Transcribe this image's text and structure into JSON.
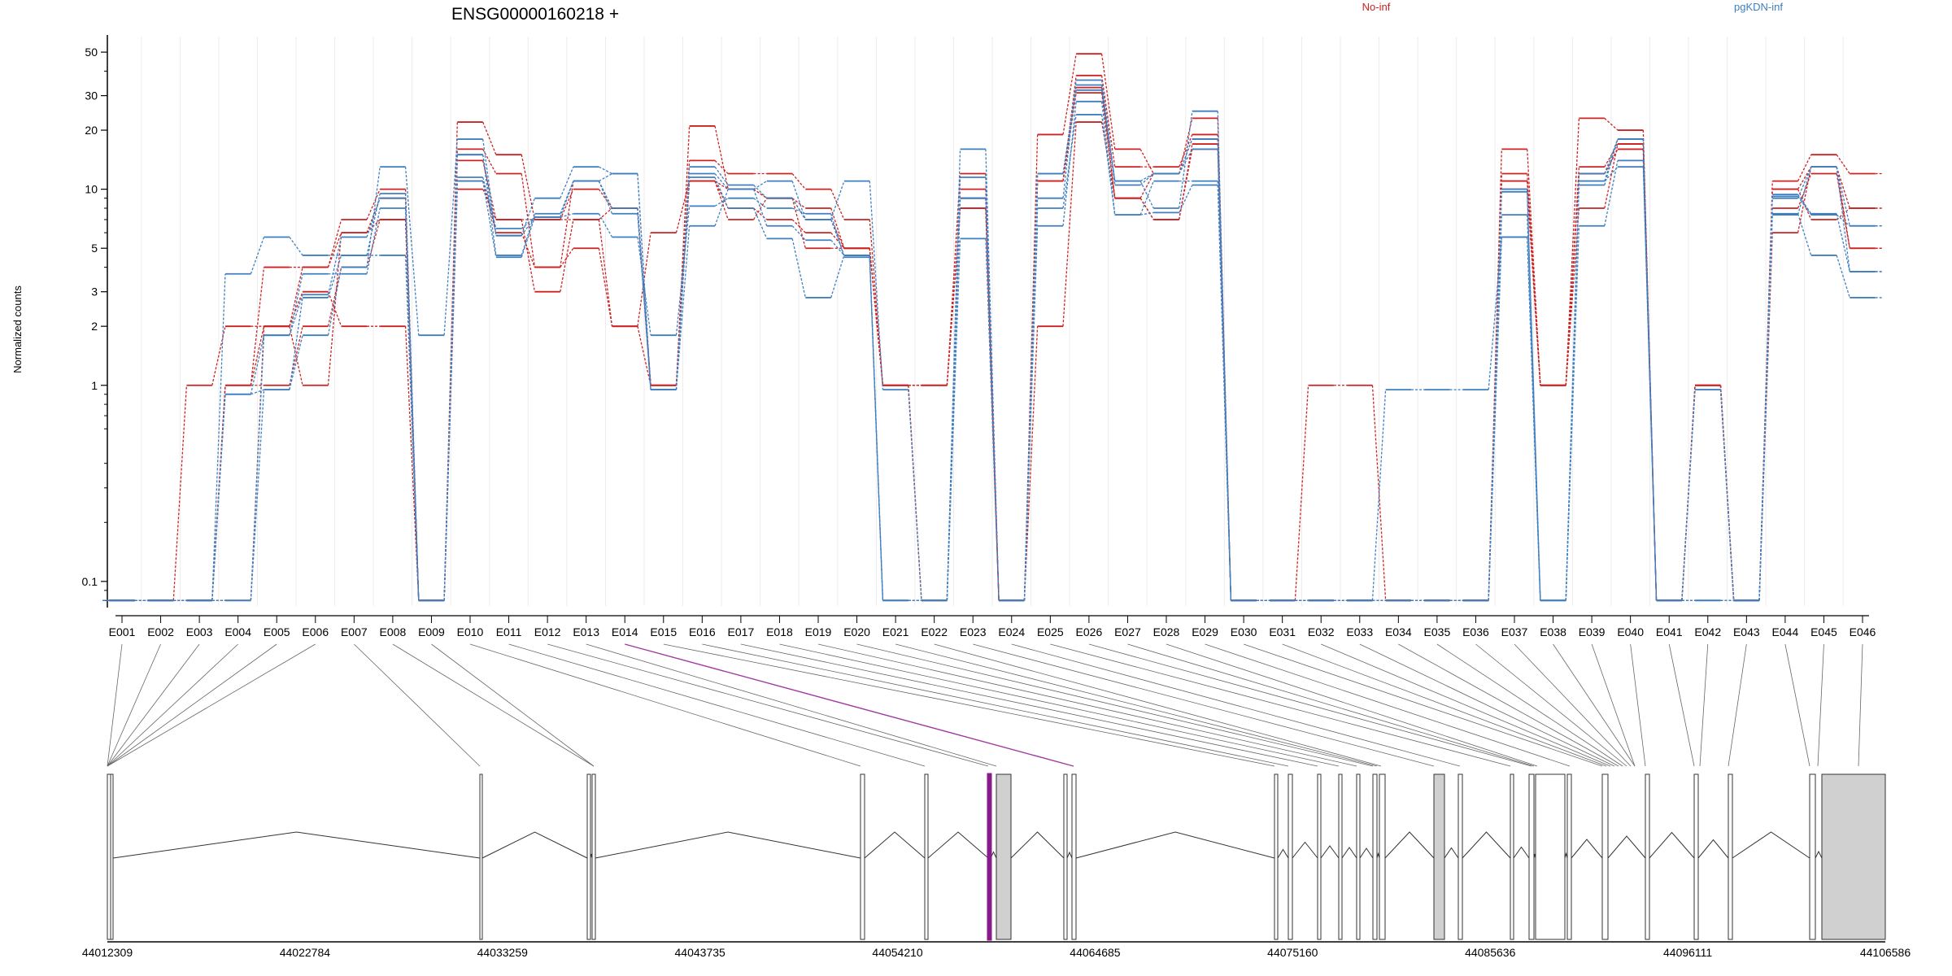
{
  "chart_data": {
    "type": "line",
    "title": "ENSG00000160218 +",
    "ylabel": "Normalized counts",
    "yscale": "log",
    "yticks": [
      "0.1",
      "1",
      "2",
      "3",
      "5",
      "10",
      "20",
      "30",
      "50"
    ],
    "ylim": [
      0.075,
      60
    ],
    "legend": [
      {
        "name": "No-inf",
        "color": "#cc2222"
      },
      {
        "name": "pgKDN-inf",
        "color": "#3f7fc0"
      }
    ],
    "exon_labels": [
      "E001",
      "E002",
      "E003",
      "E004",
      "E005",
      "E006",
      "E007",
      "E008",
      "E009",
      "E010",
      "E011",
      "E012",
      "E013",
      "E014",
      "E015",
      "E016",
      "E017",
      "E018",
      "E019",
      "E020",
      "E021",
      "E022",
      "E023",
      "E024",
      "E025",
      "E026",
      "E027",
      "E028",
      "E029",
      "E030",
      "E031",
      "E032",
      "E033",
      "E034",
      "E035",
      "E036",
      "E037",
      "E038",
      "E039",
      "E040",
      "E041",
      "E042",
      "E043",
      "E044",
      "E045",
      "E046"
    ],
    "genomic_axis": {
      "ticks": [
        "44012309",
        "44022784",
        "44033259",
        "44043735",
        "44054210",
        "44064685",
        "44075160",
        "44085636",
        "44096111",
        "44106586"
      ],
      "range": [
        44012309,
        44106586
      ]
    },
    "highlighted_exon": "E014",
    "series": [
      {
        "group": "No-inf",
        "color": "#cc2222",
        "values": [
          0.08,
          0.08,
          1,
          2,
          2,
          4,
          6,
          7,
          0.08,
          22,
          15,
          7,
          10,
          8,
          1,
          21,
          10,
          9,
          7,
          5,
          1,
          1,
          12,
          0.08,
          19,
          49,
          16,
          12,
          23,
          0.08,
          0.08,
          1,
          1,
          0.08,
          0.08,
          0.08,
          16,
          1,
          23,
          20,
          0.08,
          1,
          0.08,
          11,
          15,
          12
        ]
      },
      {
        "group": "No-inf",
        "color": "#cc2222",
        "values": [
          0.08,
          0.08,
          0.08,
          1,
          4,
          4,
          7,
          10,
          0.08,
          16,
          12,
          4,
          5,
          2,
          1,
          14,
          12,
          12,
          10,
          7,
          1,
          0.08,
          10,
          0.08,
          11,
          38,
          13,
          13,
          19,
          0.08,
          0.08,
          0.08,
          0.08,
          0.08,
          0.08,
          0.08,
          12,
          1,
          13,
          17,
          0.08,
          1,
          0.08,
          10,
          13,
          8
        ]
      },
      {
        "group": "No-inf",
        "color": "#cc2222",
        "values": [
          0.08,
          0.08,
          0.08,
          1,
          1,
          2,
          4,
          7,
          0.08,
          14,
          7,
          3,
          7,
          2,
          6,
          11,
          7,
          9,
          5,
          5,
          1,
          0.08,
          9,
          0.08,
          11,
          33,
          9,
          12,
          18,
          0.08,
          0.08,
          0.08,
          0.08,
          0.08,
          0.08,
          0.08,
          11,
          1,
          8,
          17,
          0.08,
          1,
          0.08,
          8,
          12,
          5
        ]
      },
      {
        "group": "No-inf",
        "color": "#cc2222",
        "values": [
          0.08,
          0.08,
          0.08,
          0.08,
          2,
          3,
          2,
          2,
          0.08,
          11,
          6,
          4,
          11,
          8,
          1,
          11,
          8,
          7,
          6,
          5,
          1,
          1,
          8,
          0.08,
          11,
          31,
          9,
          7,
          17,
          0.08,
          0.08,
          0.08,
          0.08,
          0.08,
          0.08,
          0.08,
          10,
          1,
          12,
          16,
          0.08,
          1,
          0.08,
          6,
          13,
          5
        ]
      },
      {
        "group": "No-inf",
        "color": "#cc2222",
        "values": [
          0.08,
          0.08,
          0.08,
          1,
          2,
          1,
          6,
          9,
          0.08,
          10,
          7,
          7,
          7,
          8,
          1,
          11,
          10,
          9,
          8,
          5,
          1,
          1,
          8,
          0.08,
          2,
          22,
          9,
          7,
          16,
          0.08,
          0.08,
          0.08,
          0.08,
          0.08,
          0.08,
          0.08,
          11,
          1,
          12,
          16,
          0.08,
          1,
          0.08,
          10,
          7,
          8
        ]
      },
      {
        "group": "pgKDN-inf",
        "color": "#3f7fc0",
        "values": [
          0.08,
          0.08,
          0.08,
          0.08,
          0.95,
          1.8,
          4,
          13,
          1.8,
          18,
          5.8,
          9,
          13,
          12,
          0.95,
          12,
          10,
          11,
          7,
          11,
          0.95,
          0.08,
          16,
          0.08,
          9,
          36,
          11,
          8,
          25,
          0.08,
          0.08,
          0.08,
          0.08,
          0.95,
          0.95,
          0.95,
          5.7,
          0.08,
          6.5,
          14,
          0.08,
          0.95,
          0.08,
          7.5,
          4.6,
          2.8
        ]
      },
      {
        "group": "pgKDN-inf",
        "color": "#3f7fc0",
        "values": [
          0.08,
          0.08,
          0.08,
          0.08,
          1.8,
          2.9,
          5.7,
          9,
          0.08,
          15,
          5.8,
          7.2,
          11,
          7.5,
          0.95,
          13,
          10.5,
          9,
          7,
          4.6,
          0.08,
          0.08,
          11.5,
          0.08,
          12,
          34,
          10.5,
          12,
          18,
          0.08,
          0.08,
          0.08,
          0.08,
          0.08,
          0.08,
          0.08,
          9.7,
          0.08,
          10.5,
          18,
          0.08,
          0.95,
          0.08,
          9.4,
          7.5,
          3.8
        ]
      },
      {
        "group": "pgKDN-inf",
        "color": "#3f7fc0",
        "values": [
          0.08,
          0.08,
          0.08,
          3.7,
          5.7,
          4.6,
          4.6,
          4.6,
          0.08,
          11,
          4.5,
          7.2,
          7.5,
          5.7,
          1.8,
          8.2,
          9,
          8,
          7.5,
          4.5,
          0.08,
          0.08,
          5.6,
          0.08,
          6.5,
          28,
          7.4,
          11,
          11,
          0.08,
          0.08,
          0.08,
          0.08,
          0.08,
          0.08,
          0.08,
          5.7,
          0.08,
          12,
          18,
          0.08,
          0.08,
          0.08,
          9,
          13,
          3.8
        ]
      },
      {
        "group": "pgKDN-inf",
        "color": "#3f7fc0",
        "values": [
          0.08,
          0.08,
          0.08,
          0.9,
          1.8,
          3.7,
          3.7,
          8,
          0.08,
          11.5,
          6.3,
          7.2,
          11,
          8,
          0.95,
          6.5,
          10,
          6.5,
          5.5,
          4.6,
          0.08,
          0.08,
          9,
          0.08,
          8,
          24,
          7.4,
          7.6,
          10.5,
          0.08,
          0.08,
          0.08,
          0.08,
          0.08,
          0.08,
          0.08,
          7.4,
          0.08,
          11,
          13,
          0.08,
          0.08,
          0.08,
          9.2,
          7.4,
          6.5
        ]
      },
      {
        "group": "pgKDN-inf",
        "color": "#3f7fc0",
        "values": [
          0.08,
          0.08,
          0.08,
          0.9,
          0.95,
          2.8,
          4.6,
          9.5,
          0.08,
          15,
          4.6,
          7.5,
          11,
          12,
          0.95,
          11.5,
          8,
          5.6,
          2.8,
          4.6,
          0.08,
          0.08,
          9,
          0.08,
          12,
          32,
          11,
          12,
          16,
          0.08,
          0.08,
          0.08,
          0.08,
          0.08,
          0.08,
          0.08,
          10,
          0.08,
          11,
          18,
          0.08,
          0.08,
          0.08,
          7.4,
          13,
          6.5
        ]
      }
    ]
  }
}
